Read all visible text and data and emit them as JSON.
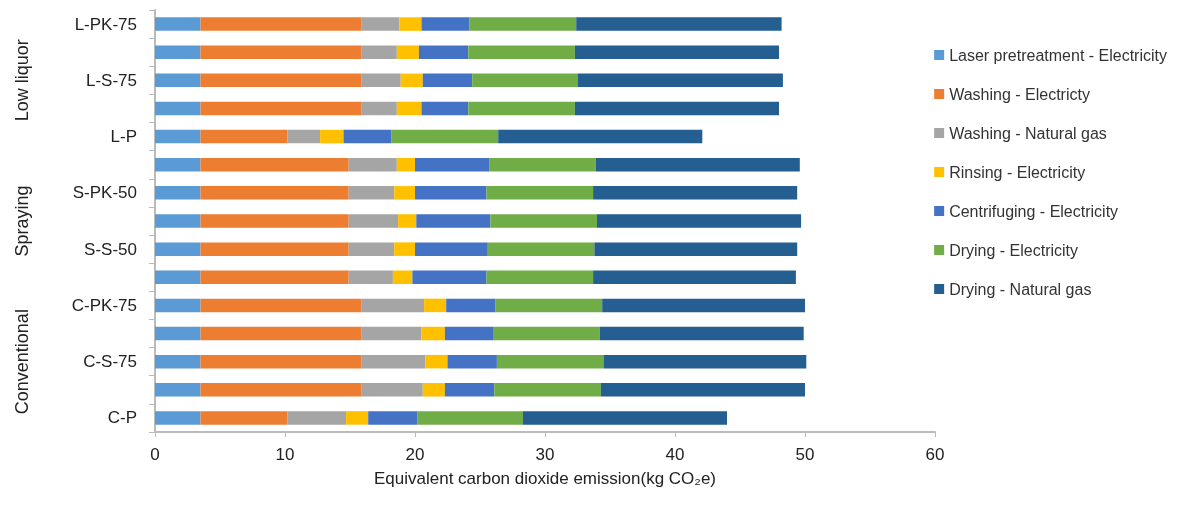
{
  "chart_data": {
    "type": "bar",
    "orientation": "horizontal",
    "stacked": true,
    "xlabel": "Equivalent carbon dioxide emission(kg CO₂e)",
    "categories": [
      "L-PK-75",
      null,
      "L-S-75",
      null,
      "L-P",
      null,
      "S-PK-50",
      null,
      "S-S-50",
      null,
      "C-PK-75",
      null,
      "C-S-75",
      null,
      "C-P"
    ],
    "annotations": [
      "Low liquor",
      "Spraying",
      "Conventional"
    ],
    "xlim": [
      0,
      60
    ],
    "xticks": [
      0,
      10,
      20,
      30,
      40,
      50,
      60
    ],
    "grid": false,
    "legend": "right",
    "series": [
      {
        "name": "Laser pretreatment - Electricity",
        "color": "#5b9bd5",
        "values": [
          3.5,
          3.5,
          3.5,
          3.5,
          3.5,
          3.5,
          3.5,
          3.5,
          3.5,
          3.5,
          3.5,
          3.5,
          3.5,
          3.5,
          3.5
        ]
      },
      {
        "name": "Washing - Electricty",
        "color": "#ed7d31",
        "values": [
          12.4,
          12.4,
          12.4,
          12.4,
          6.7,
          11.4,
          11.4,
          11.4,
          11.4,
          11.4,
          12.4,
          12.4,
          12.4,
          12.4,
          6.7
        ]
      },
      {
        "name": "Washing - Natural gas",
        "color": "#a5a5a5",
        "values": [
          2.9,
          2.7,
          3.0,
          2.7,
          2.5,
          3.7,
          3.5,
          3.8,
          3.5,
          3.4,
          4.8,
          4.6,
          4.9,
          4.7,
          4.5
        ]
      },
      {
        "name": "Rinsing - Electricity",
        "color": "#ffc000",
        "values": [
          1.7,
          1.7,
          1.7,
          1.9,
          1.8,
          1.4,
          1.6,
          1.4,
          1.6,
          1.5,
          1.7,
          1.8,
          1.7,
          1.7,
          1.7
        ]
      },
      {
        "name": "Centrifuging - Electricity",
        "color": "#4472c4",
        "values": [
          3.7,
          3.8,
          3.8,
          3.6,
          3.7,
          5.7,
          5.5,
          5.7,
          5.6,
          5.7,
          3.8,
          3.7,
          3.8,
          3.8,
          3.8
        ]
      },
      {
        "name": "Drying - Electricity",
        "color": "#70ad47",
        "values": [
          8.2,
          8.2,
          8.1,
          8.2,
          8.2,
          8.2,
          8.2,
          8.2,
          8.2,
          8.2,
          8.2,
          8.2,
          8.2,
          8.2,
          8.1
        ]
      },
      {
        "name": "Drying - Natural gas",
        "color": "#255e91",
        "values": [
          15.8,
          15.7,
          15.8,
          15.7,
          15.7,
          15.7,
          15.7,
          15.7,
          15.6,
          15.6,
          15.6,
          15.7,
          15.6,
          15.7,
          15.7
        ]
      }
    ]
  }
}
